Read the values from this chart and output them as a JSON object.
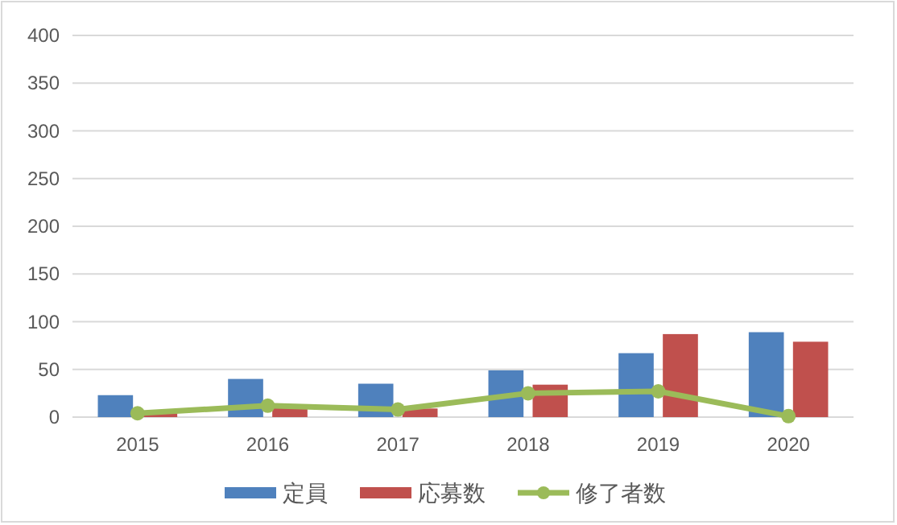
{
  "chart_data": {
    "type": "bar",
    "categories": [
      "2015",
      "2016",
      "2017",
      "2018",
      "2019",
      "2020"
    ],
    "series": [
      {
        "name": "定員",
        "color": "#4f81bd",
        "values": [
          23,
          40,
          35,
          49,
          67,
          89
        ]
      },
      {
        "name": "応募数",
        "color": "#c0504d",
        "values": [
          4,
          10,
          9,
          34,
          87,
          79
        ]
      },
      {
        "name": "修了者数",
        "color": "#9bbb59",
        "type": "line",
        "marker": "circle",
        "values": [
          4,
          12,
          8,
          25,
          27,
          1
        ]
      }
    ],
    "ylim": [
      0,
      400
    ],
    "yticks": [
      0,
      50,
      100,
      150,
      200,
      250,
      300,
      350,
      400
    ],
    "grid": "y",
    "legend": "bottom"
  }
}
